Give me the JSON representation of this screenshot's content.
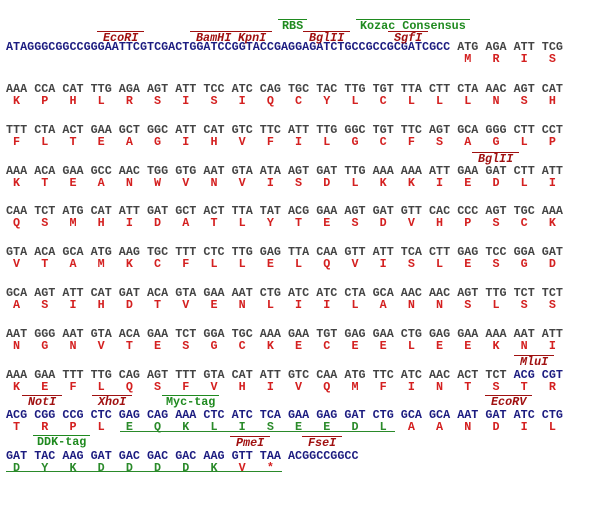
{
  "header": {
    "annotations": [
      {
        "label": "RBS"
      },
      {
        "label": "Kozac Consensus"
      },
      {
        "label": "EcoRI"
      },
      {
        "label": "BamHI"
      },
      {
        "label": "KpnI"
      },
      {
        "label": "BglII"
      },
      {
        "label": "SgfI"
      }
    ],
    "sequence": "ATAGGGCGGCCGGGAATTCGTCGACTGGATCCGGTACCGAGGAGATCTGCCGCCGCGATCGCC",
    "codons": [
      "ATG",
      "AGA",
      "ATT",
      "TCG"
    ],
    "aminos": [
      "M",
      "R",
      "I",
      "S"
    ]
  },
  "rows": [
    {
      "codons": [
        "AAA",
        "CCA",
        "CAT",
        "TTG",
        "AGA",
        "AGT",
        "ATT",
        "TCC",
        "ATC",
        "CAG",
        "TGC",
        "TAC",
        "TTG",
        "TGT",
        "TTA",
        "CTT",
        "CTA",
        "AAC",
        "AGT",
        "CAT"
      ],
      "aminos": [
        "K",
        "P",
        "H",
        "L",
        "R",
        "S",
        "I",
        "S",
        "I",
        "Q",
        "C",
        "Y",
        "L",
        "C",
        "L",
        "L",
        "L",
        "N",
        "S",
        "H"
      ],
      "annotations": []
    },
    {
      "codons": [
        "TTT",
        "CTA",
        "ACT",
        "GAA",
        "GCT",
        "GGC",
        "ATT",
        "CAT",
        "GTC",
        "TTC",
        "ATT",
        "TTG",
        "GGC",
        "TGT",
        "TTC",
        "AGT",
        "GCA",
        "GGG",
        "CTT",
        "CCT"
      ],
      "aminos": [
        "F",
        "L",
        "T",
        "E",
        "A",
        "G",
        "I",
        "H",
        "V",
        "F",
        "I",
        "L",
        "G",
        "C",
        "F",
        "S",
        "A",
        "G",
        "L",
        "P"
      ],
      "annotations": []
    },
    {
      "codons": [
        "AAA",
        "ACA",
        "GAA",
        "GCC",
        "AAC",
        "TGG",
        "GTG",
        "AAT",
        "GTA",
        "ATA",
        "AGT",
        "GAT",
        "TTG",
        "AAA",
        "AAA",
        "ATT",
        "GAA",
        "GAT",
        "CTT",
        "ATT"
      ],
      "aminos": [
        "K",
        "T",
        "E",
        "A",
        "N",
        "W",
        "V",
        "N",
        "V",
        "I",
        "S",
        "D",
        "L",
        "K",
        "K",
        "I",
        "E",
        "D",
        "L",
        "I"
      ],
      "annotations": [
        {
          "label": "BglII"
        }
      ]
    },
    {
      "codons": [
        "CAA",
        "TCT",
        "ATG",
        "CAT",
        "ATT",
        "GAT",
        "GCT",
        "ACT",
        "TTA",
        "TAT",
        "ACG",
        "GAA",
        "AGT",
        "GAT",
        "GTT",
        "CAC",
        "CCC",
        "AGT",
        "TGC",
        "AAA"
      ],
      "aminos": [
        "Q",
        "S",
        "M",
        "H",
        "I",
        "D",
        "A",
        "T",
        "L",
        "Y",
        "T",
        "E",
        "S",
        "D",
        "V",
        "H",
        "P",
        "S",
        "C",
        "K"
      ],
      "annotations": []
    },
    {
      "codons": [
        "GTA",
        "ACA",
        "GCA",
        "ATG",
        "AAG",
        "TGC",
        "TTT",
        "CTC",
        "TTG",
        "GAG",
        "TTA",
        "CAA",
        "GTT",
        "ATT",
        "TCA",
        "CTT",
        "GAG",
        "TCC",
        "GGA",
        "GAT"
      ],
      "aminos": [
        "V",
        "T",
        "A",
        "M",
        "K",
        "C",
        "F",
        "L",
        "L",
        "E",
        "L",
        "Q",
        "V",
        "I",
        "S",
        "L",
        "E",
        "S",
        "G",
        "D"
      ],
      "annotations": []
    },
    {
      "codons": [
        "GCA",
        "AGT",
        "ATT",
        "CAT",
        "GAT",
        "ACA",
        "GTA",
        "GAA",
        "AAT",
        "CTG",
        "ATC",
        "ATC",
        "CTA",
        "GCA",
        "AAC",
        "AAC",
        "AGT",
        "TTG",
        "TCT",
        "TCT"
      ],
      "aminos": [
        "A",
        "S",
        "I",
        "H",
        "D",
        "T",
        "V",
        "E",
        "N",
        "L",
        "I",
        "I",
        "L",
        "A",
        "N",
        "N",
        "S",
        "L",
        "S",
        "S"
      ],
      "annotations": []
    },
    {
      "codons": [
        "AAT",
        "GGG",
        "AAT",
        "GTA",
        "ACA",
        "GAA",
        "TCT",
        "GGA",
        "TGC",
        "AAA",
        "GAA",
        "TGT",
        "GAG",
        "GAA",
        "CTG",
        "GAG",
        "GAA",
        "AAA",
        "AAT",
        "ATT"
      ],
      "aminos": [
        "N",
        "G",
        "N",
        "V",
        "T",
        "E",
        "S",
        "G",
        "C",
        "K",
        "E",
        "C",
        "E",
        "E",
        "L",
        "E",
        "E",
        "K",
        "N",
        "I"
      ],
      "annotations": []
    },
    {
      "codons": [
        "AAA",
        "GAA",
        "TTT",
        "TTG",
        "CAG",
        "AGT",
        "TTT",
        "GTA",
        "CAT",
        "ATT",
        "GTC",
        "CAA",
        "ATG",
        "TTC",
        "ATC",
        "AAC",
        "ACT",
        "TCT",
        "ACG",
        "CGT"
      ],
      "aminos": [
        "K",
        "E",
        "F",
        "L",
        "Q",
        "S",
        "F",
        "V",
        "H",
        "I",
        "V",
        "Q",
        "M",
        "F",
        "I",
        "N",
        "T",
        "S",
        "T",
        "R"
      ],
      "annotations": [
        {
          "label": "MluI"
        }
      ]
    },
    {
      "codons": [
        "ACG",
        "CGG",
        "CCG",
        "CTC",
        "GAG",
        "CAG",
        "AAA",
        "CTC",
        "ATC",
        "TCA",
        "GAA",
        "GAG",
        "GAT",
        "CTG",
        "GCA",
        "GCA",
        "AAT",
        "GAT",
        "ATC",
        "CTG"
      ],
      "aminos": [
        "T",
        "R",
        "P",
        "L",
        "E",
        "Q",
        "K",
        "L",
        "I",
        "S",
        "E",
        "E",
        "D",
        "L",
        "A",
        "A",
        "N",
        "D",
        "I",
        "L"
      ],
      "annotations": [
        {
          "label": "NotI"
        },
        {
          "label": "XhoI"
        },
        {
          "label": "Myc-tag"
        },
        {
          "label": "EcoRV"
        }
      ]
    },
    {
      "codons": [
        "GAT",
        "TAC",
        "AAG",
        "GAT",
        "GAC",
        "GAC",
        "GAC",
        "AAG",
        "GTT",
        "TAA",
        "ACGGCCGGCC"
      ],
      "aminos": [
        "D",
        "Y",
        "K",
        "D",
        "D",
        "D",
        "D",
        "K",
        "V",
        "*"
      ],
      "annotations": [
        {
          "label": "DDK-tag"
        },
        {
          "label": "PmeI"
        },
        {
          "label": "FseI"
        }
      ]
    }
  ]
}
